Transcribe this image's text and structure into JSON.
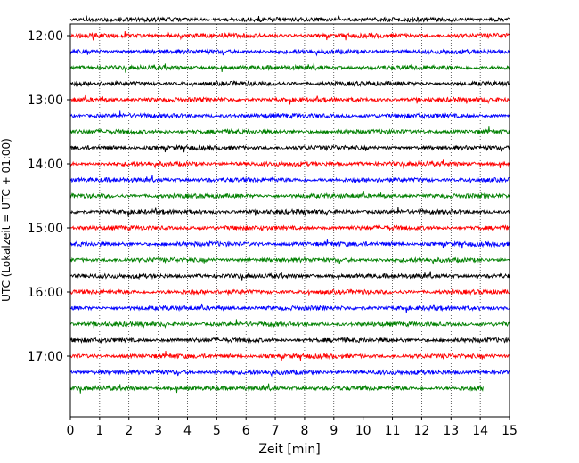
{
  "chart_data": {
    "type": "line",
    "title": "",
    "xlabel": "Zeit  [min]",
    "ylabel": "UTC (Lokalzeit = UTC + 01:00)",
    "xlim": [
      0,
      15
    ],
    "x_ticks": [
      "0",
      "1",
      "2",
      "3",
      "4",
      "5",
      "6",
      "7",
      "8",
      "9",
      "10",
      "11",
      "12",
      "13",
      "14",
      "15"
    ],
    "y_ticks": [
      "12:00",
      "13:00",
      "14:00",
      "15:00",
      "16:00",
      "17:00"
    ],
    "vertical_grid": "dotted, every minute",
    "trace_interval_minutes": 15,
    "series_colors": [
      "#000000",
      "#ff0000",
      "#0000ff",
      "#008000"
    ],
    "series": [
      {
        "start": "11:45",
        "color": "#000000",
        "from": 0,
        "to": 15
      },
      {
        "start": "12:00",
        "color": "#ff0000",
        "from": 0,
        "to": 15
      },
      {
        "start": "12:15",
        "color": "#0000ff",
        "from": 0,
        "to": 15
      },
      {
        "start": "12:30",
        "color": "#008000",
        "from": 0,
        "to": 15
      },
      {
        "start": "12:45",
        "color": "#000000",
        "from": 0,
        "to": 15
      },
      {
        "start": "13:00",
        "color": "#ff0000",
        "from": 0,
        "to": 15
      },
      {
        "start": "13:15",
        "color": "#0000ff",
        "from": 0,
        "to": 15
      },
      {
        "start": "13:30",
        "color": "#008000",
        "from": 0,
        "to": 15
      },
      {
        "start": "13:45",
        "color": "#000000",
        "from": 0,
        "to": 15
      },
      {
        "start": "14:00",
        "color": "#ff0000",
        "from": 0,
        "to": 15
      },
      {
        "start": "14:15",
        "color": "#0000ff",
        "from": 0,
        "to": 15
      },
      {
        "start": "14:30",
        "color": "#008000",
        "from": 0,
        "to": 15
      },
      {
        "start": "14:45",
        "color": "#000000",
        "from": 0,
        "to": 15
      },
      {
        "start": "15:00",
        "color": "#ff0000",
        "from": 0,
        "to": 15
      },
      {
        "start": "15:15",
        "color": "#0000ff",
        "from": 0,
        "to": 15
      },
      {
        "start": "15:30",
        "color": "#008000",
        "from": 0,
        "to": 15
      },
      {
        "start": "15:45",
        "color": "#000000",
        "from": 0,
        "to": 15
      },
      {
        "start": "16:00",
        "color": "#ff0000",
        "from": 0,
        "to": 15
      },
      {
        "start": "16:15",
        "color": "#0000ff",
        "from": 0,
        "to": 15
      },
      {
        "start": "16:30",
        "color": "#008000",
        "from": 0,
        "to": 15
      },
      {
        "start": "16:45",
        "color": "#000000",
        "from": 0,
        "to": 15
      },
      {
        "start": "17:00",
        "color": "#ff0000",
        "from": 0,
        "to": 15
      },
      {
        "start": "17:15",
        "color": "#0000ff",
        "from": 0,
        "to": 15
      },
      {
        "start": "17:30",
        "color": "#008000",
        "from": 0,
        "to": 14.1
      }
    ]
  }
}
